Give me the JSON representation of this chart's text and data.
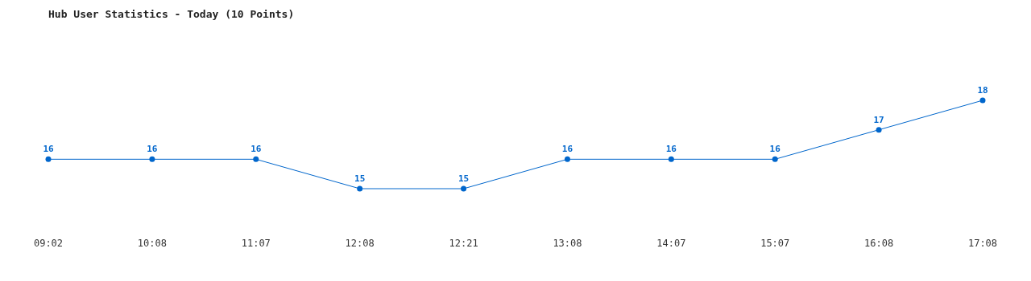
{
  "chart_data": {
    "type": "line",
    "title": "Hub User Statistics - Today (10 Points)",
    "categories": [
      "09:02",
      "10:08",
      "11:07",
      "12:08",
      "12:21",
      "13:08",
      "14:07",
      "15:07",
      "16:08",
      "17:08"
    ],
    "series": [
      {
        "color": "#0066cc",
        "values": [
          16,
          16,
          16,
          15,
          15,
          16,
          16,
          16,
          17,
          18
        ]
      }
    ],
    "data_labels": true,
    "marker": "circle",
    "line_style": "solid",
    "grid": false
  }
}
